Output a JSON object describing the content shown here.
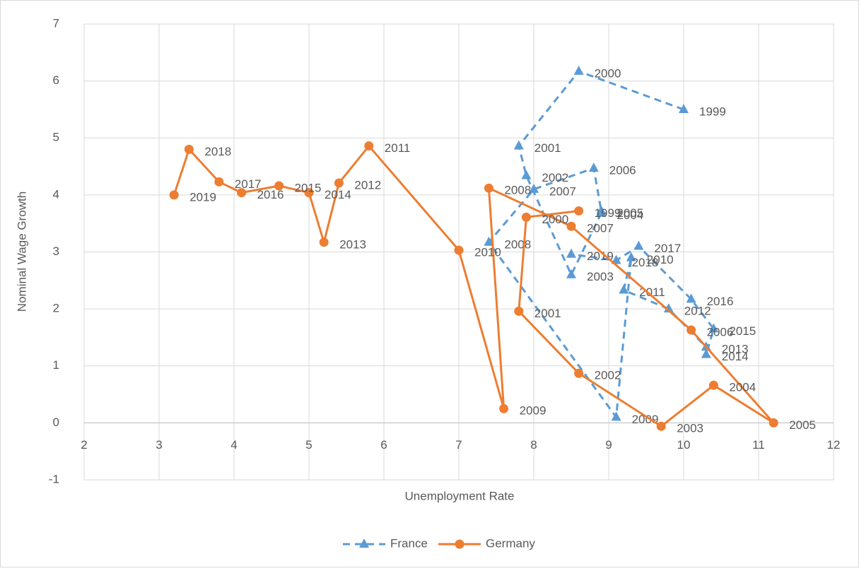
{
  "chart_data": {
    "type": "scatter",
    "x_label": "Unemployment Rate",
    "y_label": "Nominal Wage Growth",
    "xlim": [
      2,
      12
    ],
    "xticks": [
      2,
      3,
      4,
      5,
      6,
      7,
      8,
      9,
      10,
      11,
      12
    ],
    "ylim": [
      -1,
      7
    ],
    "yticks": [
      -1,
      0,
      1,
      2,
      3,
      4,
      5,
      6,
      7
    ],
    "grid": true,
    "legend": "bottom",
    "series": [
      {
        "name": "France",
        "color": "#5b9bd5",
        "dashed": true,
        "marker": "triangle",
        "labels": [
          "1999",
          "2000",
          "2001",
          "2002",
          "2003",
          "2004",
          "2005",
          "2006",
          "2007",
          "2008",
          "2009",
          "2010",
          "2011",
          "2012",
          "2013",
          "2014",
          "2015",
          "2016",
          "2017",
          "2018",
          "2019"
        ],
        "x": [
          10.0,
          8.6,
          7.8,
          7.9,
          8.5,
          8.9,
          8.9,
          8.8,
          8.0,
          7.4,
          9.1,
          9.3,
          9.2,
          9.8,
          10.3,
          10.3,
          10.4,
          10.1,
          9.4,
          9.1,
          8.5
        ],
        "values": [
          5.5,
          6.17,
          4.86,
          4.34,
          2.6,
          3.68,
          3.72,
          4.47,
          4.1,
          3.17,
          0.1,
          2.9,
          2.33,
          2.0,
          1.33,
          1.2,
          1.65,
          2.17,
          3.1,
          2.85,
          2.96
        ]
      },
      {
        "name": "Germany",
        "color": "#ed7d31",
        "dashed": false,
        "marker": "circle",
        "labels": [
          "1999",
          "2000",
          "2001",
          "2002",
          "2003",
          "2004",
          "2005",
          "2006",
          "2007",
          "2008",
          "2009",
          "2010",
          "2011",
          "2012",
          "2013",
          "2014",
          "2015",
          "2016",
          "2017",
          "2018",
          "2019"
        ],
        "x": [
          8.6,
          7.9,
          7.8,
          8.6,
          9.7,
          10.4,
          11.2,
          10.1,
          8.5,
          7.4,
          7.6,
          7.0,
          5.8,
          5.4,
          5.2,
          5.0,
          4.6,
          4.1,
          3.8,
          3.4,
          3.2
        ],
        "values": [
          3.72,
          3.61,
          1.96,
          0.87,
          -0.06,
          0.66,
          0.0,
          1.63,
          3.45,
          4.12,
          0.25,
          3.03,
          4.86,
          4.21,
          3.17,
          4.04,
          4.16,
          4.04,
          4.23,
          4.8,
          4.0
        ]
      }
    ]
  }
}
